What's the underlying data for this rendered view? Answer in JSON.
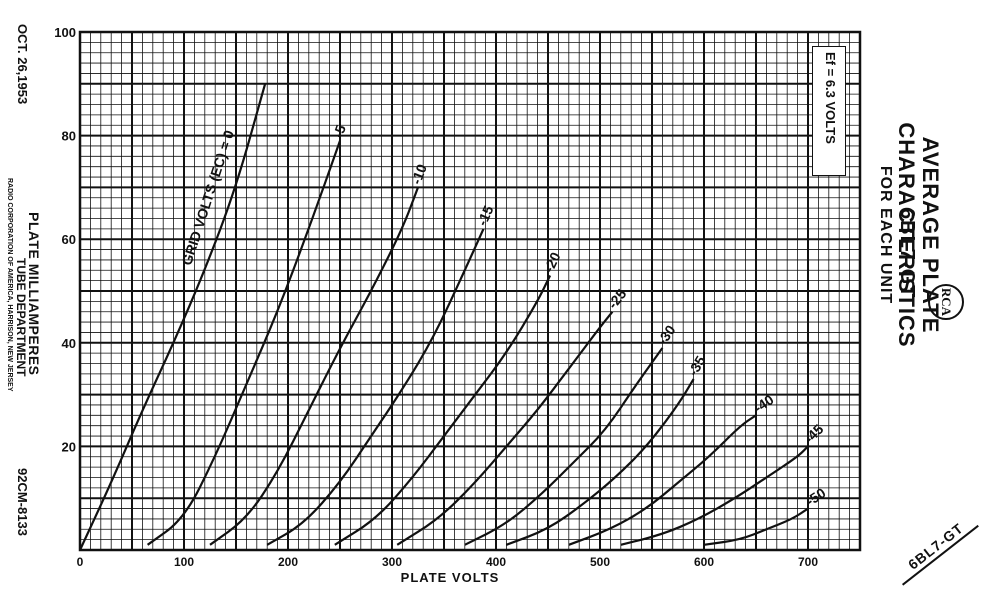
{
  "header": {
    "date": "OCT. 26,1953",
    "tube_type": "6BL7-GT",
    "title_line1": "AVERAGE PLATE CHARACTERISTICS",
    "title_line2": "FOR EACH UNIT",
    "logo": "RCA",
    "heater_note": "Ef = 6.3 VOLTS",
    "department": "TUBE DEPARTMENT",
    "corporation": "RADIO CORPORATION OF AMERICA, HARRISON, NEW JERSEY",
    "doc_number": "92CM-8133",
    "corner_label": "6BL7-GT"
  },
  "chart_data": {
    "type": "line",
    "xlabel": "PLATE VOLTS",
    "ylabel": "PLATE MILLIAMPERES",
    "xlim": [
      0,
      750
    ],
    "ylim": [
      0,
      100
    ],
    "x_ticks": [
      0,
      100,
      200,
      300,
      400,
      500,
      600,
      700
    ],
    "y_ticks": [
      20,
      40,
      60,
      80,
      100
    ],
    "grid": true,
    "curve_family_label": "GRID VOLTS (EC) = 0",
    "series": [
      {
        "name": "0",
        "points": [
          [
            0,
            0
          ],
          [
            30,
            13
          ],
          [
            60,
            27
          ],
          [
            90,
            40
          ],
          [
            120,
            54
          ],
          [
            150,
            70
          ],
          [
            178,
            90
          ]
        ]
      },
      {
        "name": "-5",
        "points": [
          [
            65,
            1
          ],
          [
            100,
            6
          ],
          [
            130,
            18
          ],
          [
            160,
            32
          ],
          [
            190,
            46
          ],
          [
            220,
            62
          ],
          [
            250,
            79
          ]
        ]
      },
      {
        "name": "-10",
        "points": [
          [
            125,
            1
          ],
          [
            160,
            6
          ],
          [
            190,
            15
          ],
          [
            220,
            27
          ],
          [
            250,
            39
          ],
          [
            280,
            50
          ],
          [
            310,
            62
          ],
          [
            325,
            70
          ]
        ]
      },
      {
        "name": "-15",
        "points": [
          [
            180,
            1
          ],
          [
            215,
            5
          ],
          [
            250,
            13
          ],
          [
            280,
            22
          ],
          [
            310,
            31
          ],
          [
            340,
            41
          ],
          [
            370,
            54
          ],
          [
            388,
            62
          ]
        ]
      },
      {
        "name": "-20",
        "points": [
          [
            245,
            1
          ],
          [
            285,
            6
          ],
          [
            320,
            14
          ],
          [
            350,
            22
          ],
          [
            380,
            30
          ],
          [
            410,
            38
          ],
          [
            440,
            48
          ],
          [
            452,
            53
          ]
        ]
      },
      {
        "name": "-25",
        "points": [
          [
            305,
            1
          ],
          [
            345,
            6
          ],
          [
            380,
            13
          ],
          [
            410,
            20
          ],
          [
            440,
            27
          ],
          [
            470,
            35
          ],
          [
            500,
            43
          ],
          [
            512,
            46
          ]
        ]
      },
      {
        "name": "-30",
        "points": [
          [
            370,
            1
          ],
          [
            410,
            5
          ],
          [
            445,
            11
          ],
          [
            475,
            17
          ],
          [
            505,
            23
          ],
          [
            535,
            32
          ],
          [
            560,
            39
          ]
        ]
      },
      {
        "name": "-35",
        "points": [
          [
            410,
            1
          ],
          [
            450,
            4
          ],
          [
            485,
            9
          ],
          [
            515,
            14
          ],
          [
            545,
            20
          ],
          [
            575,
            28
          ],
          [
            590,
            33
          ]
        ]
      },
      {
        "name": "-40",
        "points": [
          [
            470,
            1
          ],
          [
            510,
            4
          ],
          [
            545,
            8
          ],
          [
            575,
            13
          ],
          [
            605,
            18
          ],
          [
            635,
            24
          ],
          [
            650,
            26
          ]
        ]
      },
      {
        "name": "-45",
        "points": [
          [
            520,
            1
          ],
          [
            560,
            3
          ],
          [
            595,
            6
          ],
          [
            630,
            10
          ],
          [
            660,
            14
          ],
          [
            690,
            18
          ],
          [
            700,
            20
          ]
        ]
      },
      {
        "name": "-50",
        "points": [
          [
            600,
            1
          ],
          [
            635,
            2
          ],
          [
            660,
            4
          ],
          [
            685,
            6
          ],
          [
            700,
            8
          ]
        ]
      }
    ]
  }
}
